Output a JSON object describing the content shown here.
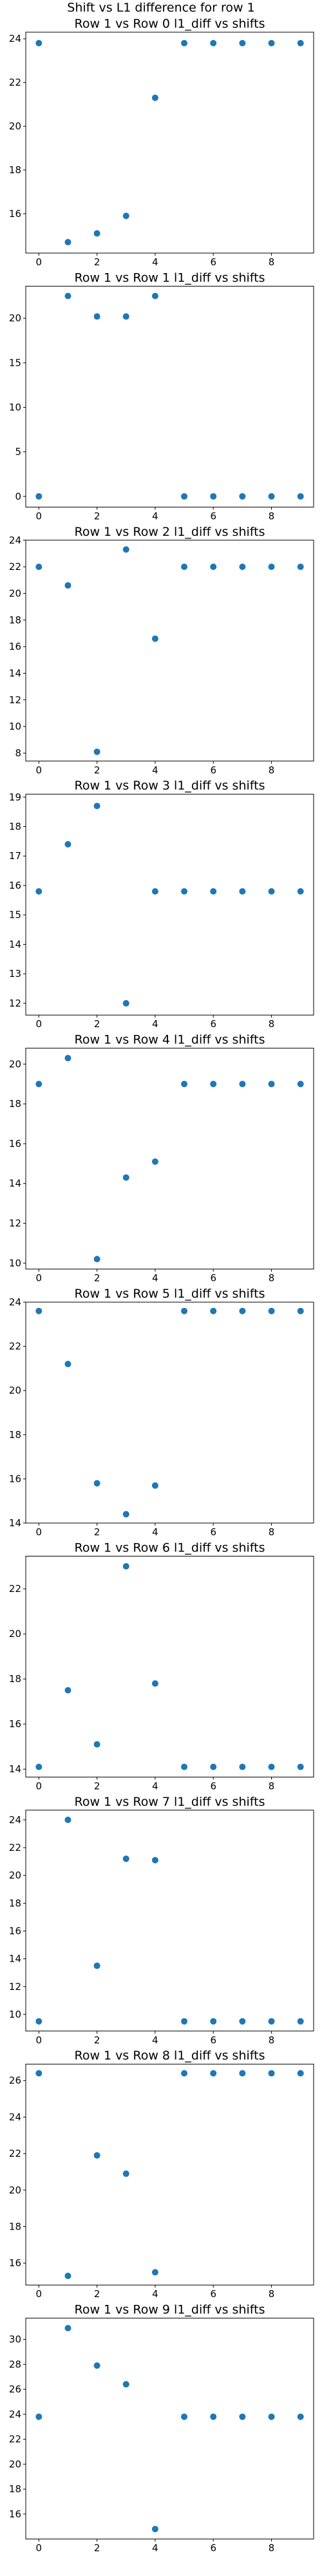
{
  "figure_title": "Shift vs L1 difference for row 1",
  "colors": {
    "marker": "#1f77b4",
    "axes": "#000000",
    "background": "#ffffff"
  },
  "chart_data": [
    {
      "type": "scatter",
      "title": "Row 1 vs Row 0 l1_diff vs shifts",
      "x": [
        0,
        1,
        2,
        3,
        4,
        5,
        6,
        7,
        8,
        9
      ],
      "y": [
        23.8,
        14.7,
        15.1,
        15.9,
        21.3,
        23.8,
        23.8,
        23.8,
        23.8,
        23.8
      ],
      "xlim": [
        -0.45,
        9.45
      ],
      "ylim": [
        14.2,
        24.3
      ],
      "xticks": [
        0,
        2,
        4,
        6,
        8
      ],
      "yticks": [
        16,
        18,
        20,
        22,
        24
      ],
      "grid": false,
      "legend": "none"
    },
    {
      "type": "scatter",
      "title": "Row 1 vs Row 1 l1_diff vs shifts",
      "x": [
        0,
        1,
        2,
        3,
        4,
        5,
        6,
        7,
        8,
        9
      ],
      "y": [
        0,
        22.5,
        20.2,
        20.2,
        22.5,
        0,
        0,
        0,
        0,
        0
      ],
      "xlim": [
        -0.45,
        9.45
      ],
      "ylim": [
        -1.2,
        23.6
      ],
      "xticks": [
        0,
        2,
        4,
        6,
        8
      ],
      "yticks": [
        0,
        5,
        10,
        15,
        20
      ],
      "grid": false,
      "legend": "none"
    },
    {
      "type": "scatter",
      "title": "Row 1 vs Row 2 l1_diff vs shifts",
      "x": [
        0,
        1,
        2,
        3,
        4,
        5,
        6,
        7,
        8,
        9
      ],
      "y": [
        22.0,
        20.6,
        8.1,
        23.3,
        16.6,
        22.0,
        22.0,
        22.0,
        22.0,
        22.0
      ],
      "xlim": [
        -0.45,
        9.45
      ],
      "ylim": [
        7.4,
        24.0
      ],
      "xticks": [
        0,
        2,
        4,
        6,
        8
      ],
      "yticks": [
        8,
        10,
        12,
        14,
        16,
        18,
        20,
        22,
        24
      ],
      "grid": false,
      "legend": "none"
    },
    {
      "type": "scatter",
      "title": "Row 1 vs Row 3 l1_diff vs shifts",
      "x": [
        0,
        1,
        2,
        3,
        4,
        5,
        6,
        7,
        8,
        9
      ],
      "y": [
        15.8,
        17.4,
        18.7,
        12.0,
        15.8,
        15.8,
        15.8,
        15.8,
        15.8,
        15.8
      ],
      "xlim": [
        -0.45,
        9.45
      ],
      "ylim": [
        11.6,
        19.1
      ],
      "xticks": [
        0,
        2,
        4,
        6,
        8
      ],
      "yticks": [
        12,
        13,
        14,
        15,
        16,
        17,
        18,
        19
      ],
      "grid": false,
      "legend": "none"
    },
    {
      "type": "scatter",
      "title": "Row 1 vs Row 4 l1_diff vs shifts",
      "x": [
        0,
        1,
        2,
        3,
        4,
        5,
        6,
        7,
        8,
        9
      ],
      "y": [
        19.0,
        20.3,
        10.2,
        14.3,
        15.1,
        19.0,
        19.0,
        19.0,
        19.0,
        19.0
      ],
      "xlim": [
        -0.45,
        9.45
      ],
      "ylim": [
        9.7,
        20.8
      ],
      "xticks": [
        0,
        2,
        4,
        6,
        8
      ],
      "yticks": [
        10,
        12,
        14,
        16,
        18,
        20
      ],
      "grid": false,
      "legend": "none"
    },
    {
      "type": "scatter",
      "title": "Row 1 vs Row 5 l1_diff vs shifts",
      "x": [
        0,
        1,
        2,
        3,
        4,
        5,
        6,
        7,
        8,
        9
      ],
      "y": [
        23.6,
        21.2,
        15.8,
        14.4,
        15.7,
        23.6,
        23.6,
        23.6,
        23.6,
        23.6
      ],
      "xlim": [
        -0.45,
        9.45
      ],
      "ylim": [
        14.0,
        24.0
      ],
      "xticks": [
        0,
        2,
        4,
        6,
        8
      ],
      "yticks": [
        14,
        16,
        18,
        20,
        22,
        24
      ],
      "grid": false,
      "legend": "none"
    },
    {
      "type": "scatter",
      "title": "Row 1 vs Row 6 l1_diff vs shifts",
      "x": [
        0,
        1,
        2,
        3,
        4,
        5,
        6,
        7,
        8,
        9
      ],
      "y": [
        14.1,
        17.5,
        15.1,
        23.0,
        17.8,
        14.1,
        14.1,
        14.1,
        14.1,
        14.1
      ],
      "xlim": [
        -0.45,
        9.45
      ],
      "ylim": [
        13.65,
        23.45
      ],
      "xticks": [
        0,
        2,
        4,
        6,
        8
      ],
      "yticks": [
        14,
        16,
        18,
        20,
        22
      ],
      "grid": false,
      "legend": "none"
    },
    {
      "type": "scatter",
      "title": "Row 1 vs Row 7 l1_diff vs shifts",
      "x": [
        0,
        1,
        2,
        3,
        4,
        5,
        6,
        7,
        8,
        9
      ],
      "y": [
        9.5,
        24.0,
        13.5,
        21.2,
        21.1,
        9.5,
        9.5,
        9.5,
        9.5,
        9.5
      ],
      "xlim": [
        -0.45,
        9.45
      ],
      "ylim": [
        8.8,
        24.7
      ],
      "xticks": [
        0,
        2,
        4,
        6,
        8
      ],
      "yticks": [
        10,
        12,
        14,
        16,
        18,
        20,
        22,
        24
      ],
      "grid": false,
      "legend": "none"
    },
    {
      "type": "scatter",
      "title": "Row 1 vs Row 8 l1_diff vs shifts",
      "x": [
        0,
        1,
        2,
        3,
        4,
        5,
        6,
        7,
        8,
        9
      ],
      "y": [
        26.4,
        15.3,
        21.9,
        20.9,
        15.5,
        26.4,
        26.4,
        26.4,
        26.4,
        26.4
      ],
      "xlim": [
        -0.45,
        9.45
      ],
      "ylim": [
        14.8,
        26.9
      ],
      "xticks": [
        0,
        2,
        4,
        6,
        8
      ],
      "yticks": [
        16,
        18,
        20,
        22,
        24,
        26
      ],
      "grid": false,
      "legend": "none"
    },
    {
      "type": "scatter",
      "title": "Row 1 vs Row 9 l1_diff vs shifts",
      "x": [
        0,
        1,
        2,
        3,
        4,
        5,
        6,
        7,
        8,
        9
      ],
      "y": [
        23.8,
        30.9,
        27.9,
        26.4,
        14.8,
        23.8,
        23.8,
        23.8,
        23.8,
        23.8
      ],
      "xlim": [
        -0.45,
        9.45
      ],
      "ylim": [
        14.0,
        31.7
      ],
      "xticks": [
        0,
        2,
        4,
        6,
        8
      ],
      "yticks": [
        16,
        18,
        20,
        22,
        24,
        26,
        28,
        30
      ],
      "grid": false,
      "legend": "none"
    }
  ]
}
